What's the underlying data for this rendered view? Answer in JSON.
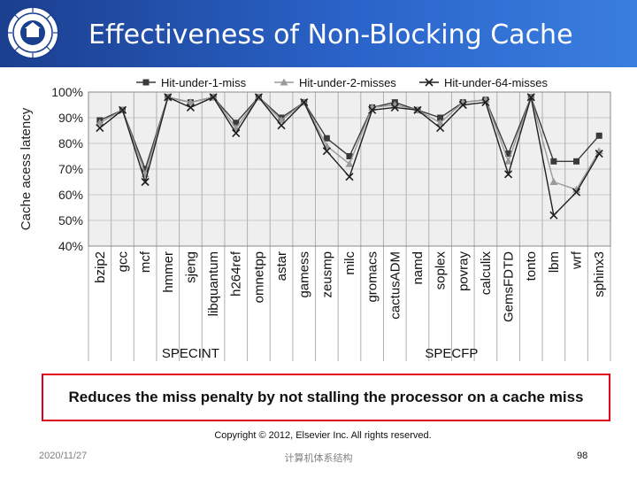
{
  "slide": {
    "title": "Effectiveness of Non-Blocking Cache",
    "callout": "Reduces the miss penalty by not stalling the processor on a cache miss",
    "copyright": "Copyright © 2012, Elsevier Inc. All rights reserved.",
    "date": "2020/11/27",
    "course": "计算机体系结构",
    "page": "98"
  },
  "colors": {
    "header": "#2a63c9",
    "callout_border": "#e0001b",
    "plot_bg": "#efefef",
    "series_1": "#3a3a3a",
    "series_2": "#9a9a9a",
    "series_3": "#1f1f1f"
  },
  "chart_data": {
    "type": "line",
    "ylabel": "Cache acess latency",
    "ylim": [
      40,
      100
    ],
    "yticks": [
      "40%",
      "50%",
      "60%",
      "70%",
      "80%",
      "90%",
      "100%"
    ],
    "ytick_values": [
      40,
      50,
      60,
      70,
      80,
      90,
      100
    ],
    "categories": [
      "bzip2",
      "gcc",
      "mcf",
      "hmmer",
      "sjeng",
      "libquantum",
      "h264ref",
      "omnetpp",
      "astar",
      "gamess",
      "zeusmp",
      "milc",
      "gromacs",
      "cactusADM",
      "namd",
      "soplex",
      "povray",
      "calculix",
      "GemsFDTD",
      "tonto",
      "lbm",
      "wrf",
      "sphinx3"
    ],
    "groups": [
      {
        "name": "SPECINT",
        "start": 0,
        "end": 8
      },
      {
        "name": "SPECFP",
        "start": 9,
        "end": 22
      }
    ],
    "legend": "top",
    "series": [
      {
        "name": "Hit-under-1-miss",
        "marker": "square",
        "values": [
          89,
          93,
          70,
          98,
          96,
          98,
          88,
          98,
          90,
          96,
          82,
          75,
          94,
          96,
          93,
          90,
          96,
          97,
          76,
          98,
          73,
          73,
          83
        ]
      },
      {
        "name": "Hit-under-2-misses",
        "marker": "triangle",
        "values": [
          88,
          93,
          68,
          98,
          96,
          98,
          86,
          98,
          89,
          96,
          79,
          72,
          94,
          95,
          93,
          88,
          96,
          97,
          73,
          98,
          65,
          62,
          77
        ]
      },
      {
        "name": "Hit-under-64-misses",
        "marker": "x",
        "values": [
          86,
          93,
          65,
          98,
          94,
          98,
          84,
          98,
          87,
          96,
          77,
          67,
          93,
          94,
          93,
          86,
          95,
          96,
          68,
          98,
          52,
          61,
          76
        ]
      }
    ]
  }
}
